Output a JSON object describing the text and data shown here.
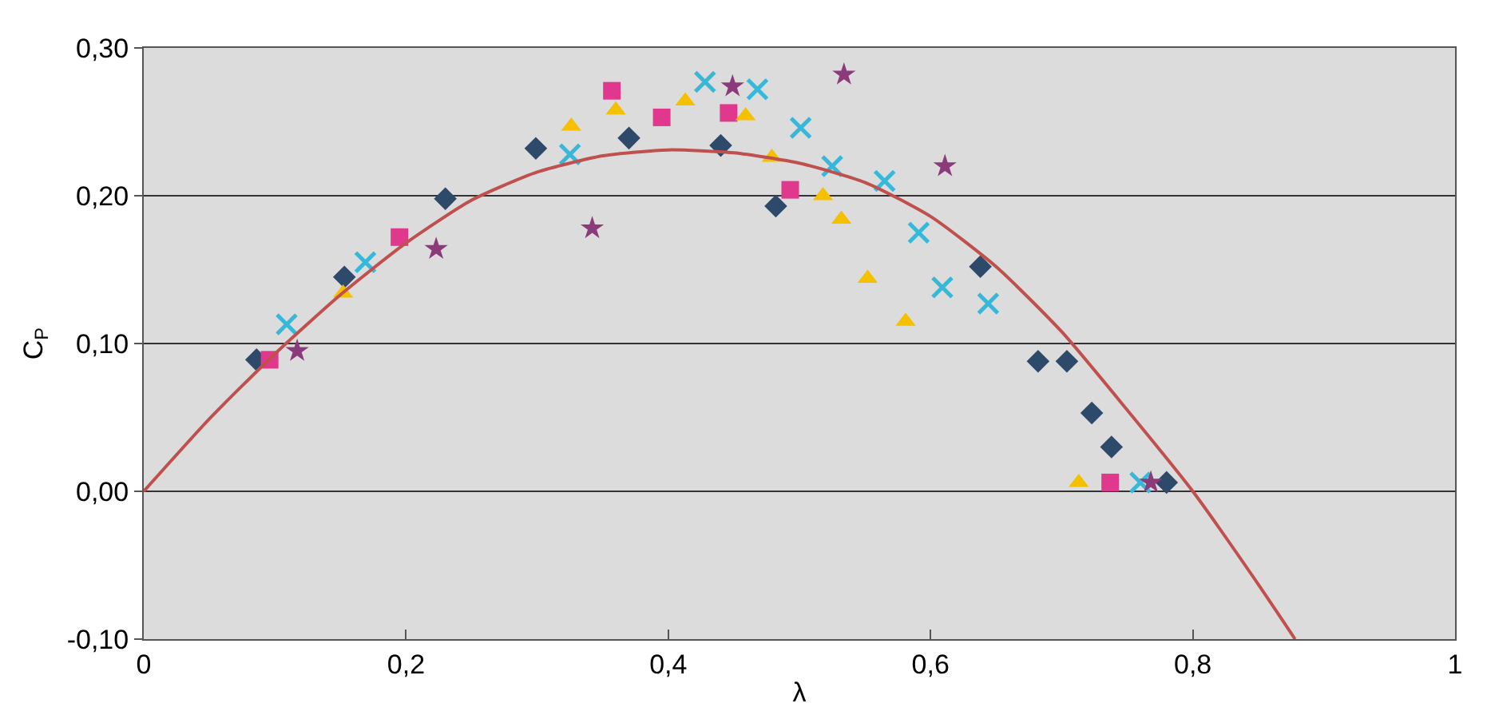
{
  "chart_data": {
    "type": "scatter",
    "xlabel": "λ",
    "ylabel": "C$_{P}$",
    "xlim": [
      0,
      1
    ],
    "ylim": [
      -0.1,
      0.3
    ],
    "xticks": [
      0,
      {
        "value": 0.2,
        "label": "0,2"
      },
      {
        "value": 0.4,
        "label": "0,4"
      },
      {
        "value": 0.6,
        "label": "0,6"
      },
      {
        "value": 0.8,
        "label": "0,8"
      },
      1
    ],
    "yticks": [
      {
        "value": -0.1,
        "label": "-0,10"
      },
      {
        "value": 0,
        "label": "0,00"
      },
      {
        "value": 0.1,
        "label": "0,10"
      },
      {
        "value": 0.2,
        "label": "0,20"
      },
      {
        "value": 0.3,
        "label": "0,30"
      }
    ],
    "grid": "y",
    "legend": false,
    "series": [
      {
        "marker": "diamond",
        "color": "#2e4a6b",
        "x": [
          0.086,
          0.153,
          0.23,
          0.299,
          0.37,
          0.44,
          0.482,
          0.638,
          0.682,
          0.704,
          0.723,
          0.738,
          0.78
        ],
        "values": [
          0.089,
          0.145,
          0.198,
          0.232,
          0.239,
          0.234,
          0.193,
          0.152,
          0.088,
          0.088,
          0.053,
          0.03,
          0.006
        ]
      },
      {
        "marker": "square",
        "color": "#e0388c",
        "x": [
          0.096,
          0.195,
          0.357,
          0.395,
          0.446,
          0.493,
          0.737
        ],
        "values": [
          0.089,
          0.172,
          0.271,
          0.253,
          0.256,
          0.204,
          0.006
        ]
      },
      {
        "marker": "triangle",
        "color": "#f5c000",
        "x": [
          0.152,
          0.326,
          0.36,
          0.413,
          0.459,
          0.479,
          0.518,
          0.532,
          0.552,
          0.581,
          0.713
        ],
        "values": [
          0.134,
          0.247,
          0.258,
          0.264,
          0.254,
          0.226,
          0.2,
          0.184,
          0.144,
          0.115,
          0.006
        ]
      },
      {
        "marker": "cross",
        "color": "#38b8d8",
        "x": [
          0.109,
          0.169,
          0.325,
          0.428,
          0.468,
          0.501,
          0.525,
          0.565,
          0.591,
          0.609,
          0.644,
          0.76
        ],
        "values": [
          0.113,
          0.155,
          0.228,
          0.277,
          0.272,
          0.246,
          0.22,
          0.21,
          0.175,
          0.138,
          0.127,
          0.006
        ]
      },
      {
        "marker": "star",
        "color": "#8b3a7a",
        "x": [
          0.117,
          0.223,
          0.342,
          0.449,
          0.534,
          0.611,
          0.768
        ],
        "values": [
          0.095,
          0.164,
          0.178,
          0.274,
          0.282,
          0.22,
          0.006
        ]
      },
      {
        "type": "line",
        "marker": "none",
        "line_style": "solid",
        "color": "#c0504d",
        "x": [
          0,
          0.05,
          0.1,
          0.15,
          0.2,
          0.25,
          0.3,
          0.35,
          0.4,
          0.45,
          0.5,
          0.55,
          0.6,
          0.65,
          0.7,
          0.75,
          0.8,
          0.85,
          0.878
        ],
        "values": [
          0,
          0.049,
          0.093,
          0.133,
          0.168,
          0.197,
          0.216,
          0.227,
          0.231,
          0.229,
          0.222,
          0.209,
          0.186,
          0.152,
          0.108,
          0.055,
          0.0,
          -0.063,
          -0.1
        ]
      }
    ]
  }
}
